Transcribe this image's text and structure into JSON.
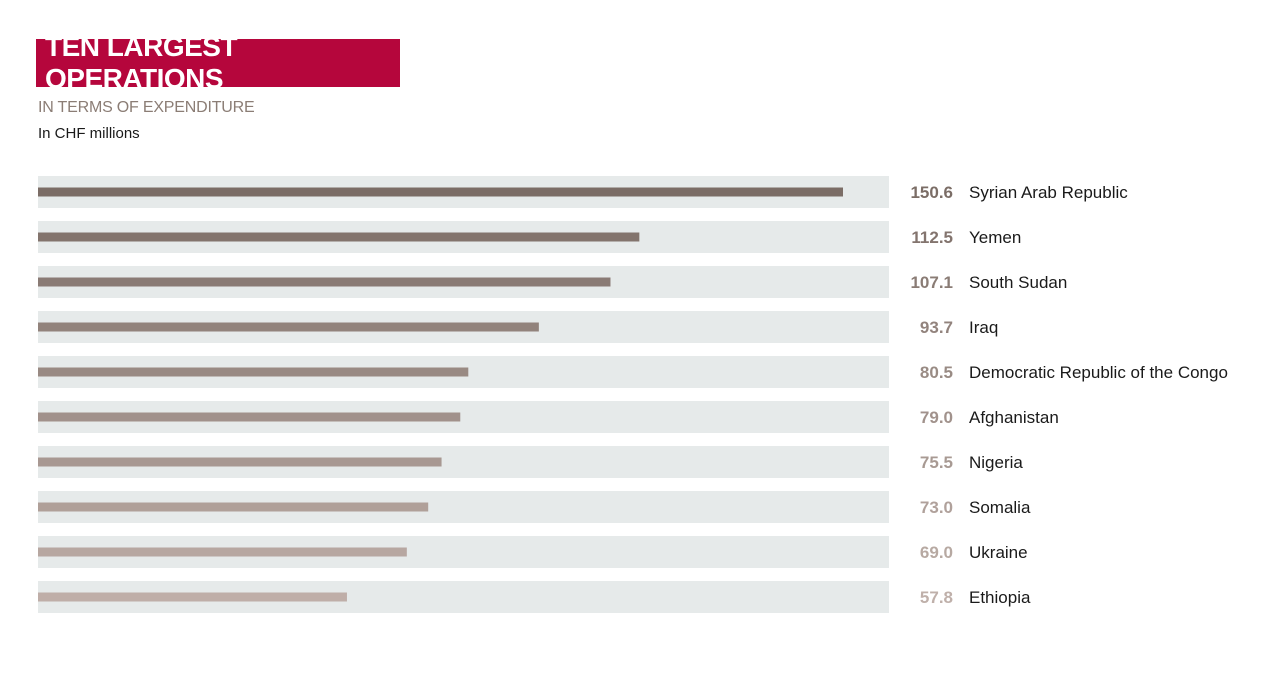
{
  "header": {
    "title": "TEN LARGEST OPERATIONS",
    "subtitle": "IN TERMS OF EXPENDITURE",
    "unit": "In CHF millions"
  },
  "colors": {
    "title_background": "#b5063c",
    "track": "#e6eaea",
    "bar_dark": "#7b6d66",
    "bar_light": "#bfaea8",
    "value_dark": "#7b6d66",
    "value_light": "#bfb0aa"
  },
  "chart_data": {
    "type": "bar",
    "orientation": "horizontal",
    "title": "TEN LARGEST OPERATIONS",
    "subtitle": "IN TERMS OF EXPENDITURE",
    "unit": "In CHF millions",
    "categories": [
      "Syrian Arab Republic",
      "Yemen",
      "South Sudan",
      "Iraq",
      "Democratic Republic of the Congo",
      "Afghanistan",
      "Nigeria",
      "Somalia",
      "Ukraine",
      "Ethiopia"
    ],
    "values": [
      150.6,
      112.5,
      107.1,
      93.7,
      80.5,
      79.0,
      75.5,
      73.0,
      69.0,
      57.8
    ],
    "value_labels": [
      "150.6",
      "112.5",
      "107.1",
      "93.7",
      "80.5",
      "79.0",
      "75.5",
      "73.0",
      "69.0",
      "57.8"
    ],
    "xlim": [
      0,
      159
    ],
    "grid": false,
    "legend": "none"
  }
}
